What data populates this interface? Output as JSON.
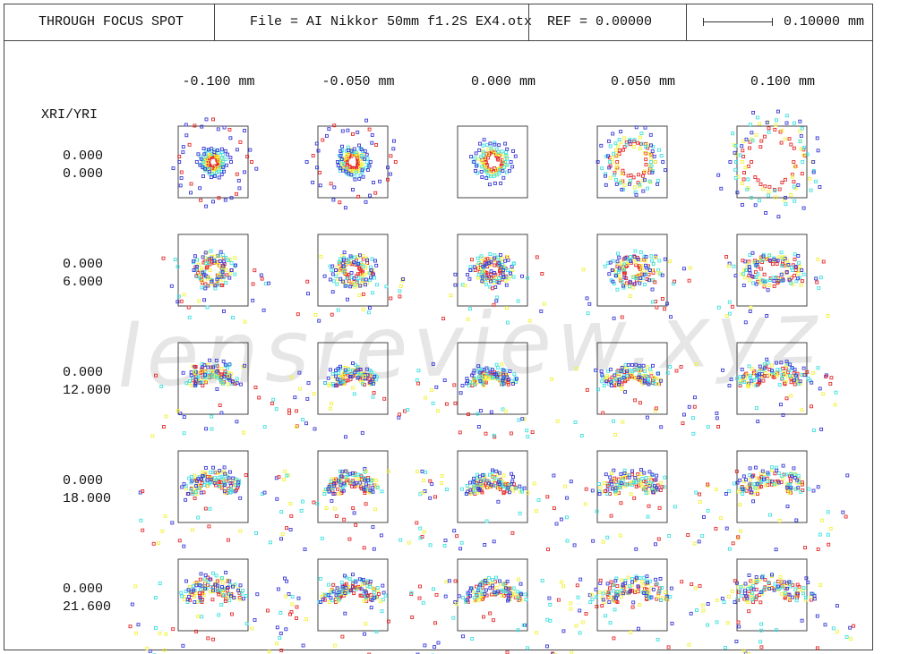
{
  "header": {
    "title": "THROUGH FOCUS SPOT",
    "file_label": "File = AI Nikkor 50mm f1.2S EX4.otx",
    "ref_label": "REF = 0.00000",
    "scale_label": "0.10000 mm"
  },
  "axis_label": "XRI/YRI",
  "watermark": "lensreview.xyz",
  "columns": [
    "-0.100  mm",
    "-0.050  mm",
    "0.000  mm",
    "0.050  mm",
    "0.100  mm"
  ],
  "rows": [
    {
      "x": "0.000",
      "y": "0.000"
    },
    {
      "x": "0.000",
      "y": "6.000"
    },
    {
      "x": "0.000",
      "y": "12.000"
    },
    {
      "x": "0.000",
      "y": "18.000"
    },
    {
      "x": "0.000",
      "y": "21.600"
    }
  ],
  "colors": {
    "blue": "#3a3ad8",
    "cyan": "#3fe0e0",
    "yellow": "#f2f23a",
    "red": "#e62a2a",
    "frame": "#444444"
  }
}
